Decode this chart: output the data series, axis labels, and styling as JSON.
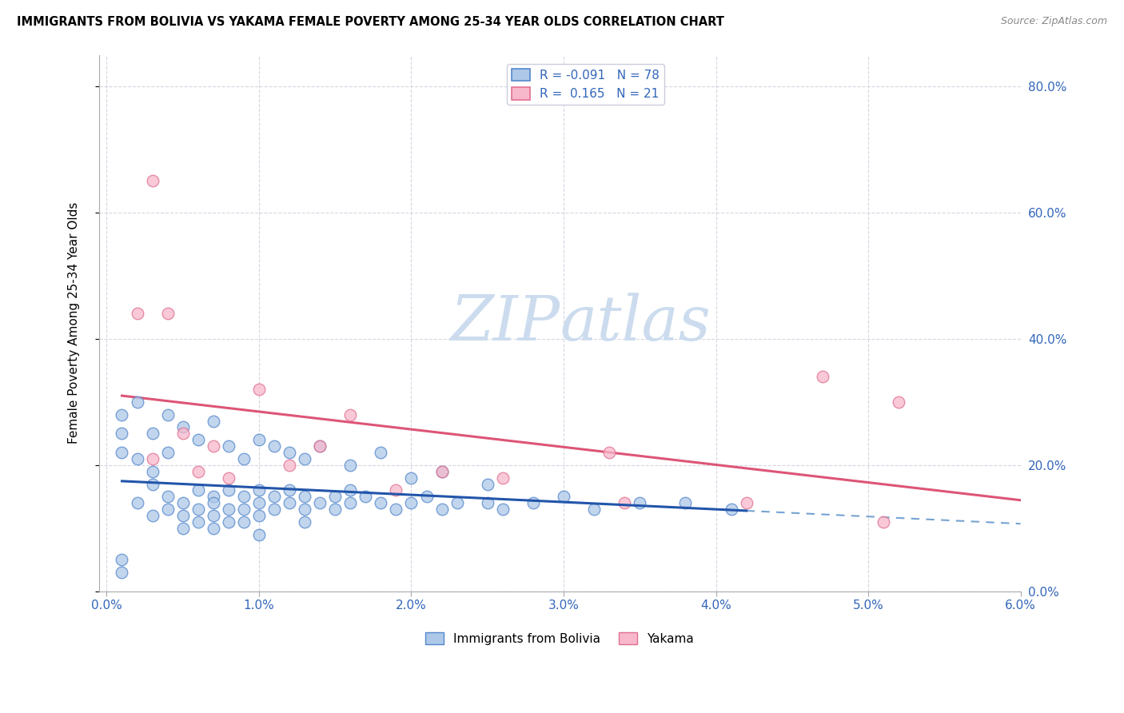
{
  "title": "IMMIGRANTS FROM BOLIVIA VS YAKAMA FEMALE POVERTY AMONG 25-34 YEAR OLDS CORRELATION CHART",
  "source": "Source: ZipAtlas.com",
  "ylabel_label": "Female Poverty Among 25-34 Year Olds",
  "xlim": [
    0.0,
    0.06
  ],
  "ylim": [
    0.0,
    0.85
  ],
  "x_tick_vals": [
    0.0,
    0.01,
    0.02,
    0.03,
    0.04,
    0.05,
    0.06
  ],
  "y_tick_vals": [
    0.0,
    0.2,
    0.4,
    0.6,
    0.8
  ],
  "blue_R": -0.091,
  "blue_N": 78,
  "pink_R": 0.165,
  "pink_N": 21,
  "blue_color": "#adc8e8",
  "blue_edge": "#5588cc",
  "pink_color": "#f8b8cc",
  "pink_edge": "#e07090",
  "blue_line_solid_color": "#2255aa",
  "blue_line_dash_color": "#6699cc",
  "pink_line_color": "#dd5577",
  "watermark_color": "#ccdcee",
  "legend_edge_color": "#ccccdd",
  "blue_x": [
    0.002,
    0.003,
    0.003,
    0.004,
    0.004,
    0.005,
    0.005,
    0.005,
    0.006,
    0.006,
    0.006,
    0.007,
    0.007,
    0.007,
    0.007,
    0.008,
    0.008,
    0.008,
    0.009,
    0.009,
    0.009,
    0.01,
    0.01,
    0.01,
    0.01,
    0.011,
    0.011,
    0.012,
    0.012,
    0.013,
    0.013,
    0.013,
    0.014,
    0.015,
    0.015,
    0.016,
    0.016,
    0.017,
    0.018,
    0.019,
    0.02,
    0.021,
    0.022,
    0.023,
    0.025,
    0.026,
    0.028,
    0.03,
    0.032,
    0.035,
    0.038,
    0.041,
    0.001,
    0.001,
    0.001,
    0.002,
    0.002,
    0.003,
    0.003,
    0.004,
    0.004,
    0.005,
    0.006,
    0.007,
    0.008,
    0.009,
    0.01,
    0.011,
    0.012,
    0.013,
    0.014,
    0.016,
    0.018,
    0.02,
    0.022,
    0.025,
    0.001,
    0.001
  ],
  "blue_y": [
    0.14,
    0.17,
    0.12,
    0.15,
    0.13,
    0.14,
    0.12,
    0.1,
    0.16,
    0.13,
    0.11,
    0.15,
    0.14,
    0.12,
    0.1,
    0.16,
    0.13,
    0.11,
    0.15,
    0.13,
    0.11,
    0.16,
    0.14,
    0.12,
    0.09,
    0.15,
    0.13,
    0.16,
    0.14,
    0.15,
    0.13,
    0.11,
    0.14,
    0.15,
    0.13,
    0.16,
    0.14,
    0.15,
    0.14,
    0.13,
    0.14,
    0.15,
    0.13,
    0.14,
    0.14,
    0.13,
    0.14,
    0.15,
    0.13,
    0.14,
    0.14,
    0.13,
    0.28,
    0.25,
    0.22,
    0.3,
    0.21,
    0.25,
    0.19,
    0.28,
    0.22,
    0.26,
    0.24,
    0.27,
    0.23,
    0.21,
    0.24,
    0.23,
    0.22,
    0.21,
    0.23,
    0.2,
    0.22,
    0.18,
    0.19,
    0.17,
    0.05,
    0.03
  ],
  "pink_x": [
    0.003,
    0.004,
    0.005,
    0.006,
    0.007,
    0.008,
    0.01,
    0.012,
    0.014,
    0.016,
    0.019,
    0.022,
    0.026,
    0.033,
    0.034,
    0.042,
    0.051,
    0.047,
    0.052,
    0.002,
    0.003
  ],
  "pink_y": [
    0.65,
    0.44,
    0.25,
    0.19,
    0.23,
    0.18,
    0.32,
    0.2,
    0.23,
    0.28,
    0.16,
    0.19,
    0.18,
    0.22,
    0.14,
    0.14,
    0.11,
    0.34,
    0.3,
    0.44,
    0.21
  ]
}
